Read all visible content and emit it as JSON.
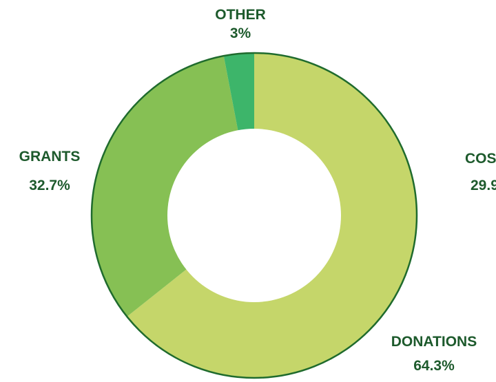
{
  "chart_data": {
    "type": "pie",
    "style": "donut",
    "categories": [
      "DONATIONS",
      "GRANTS",
      "OTHER"
    ],
    "values": [
      64.3,
      32.7,
      3.0
    ],
    "value_labels": [
      "64.3%",
      "32.7%",
      "3%"
    ],
    "colors": [
      "#c5d66a",
      "#86c054",
      "#3db56a"
    ],
    "outline_color": "#1f6b2d",
    "label_color": "#1d5a2c",
    "partial_label": {
      "category": "COS",
      "value": "29.9"
    }
  }
}
